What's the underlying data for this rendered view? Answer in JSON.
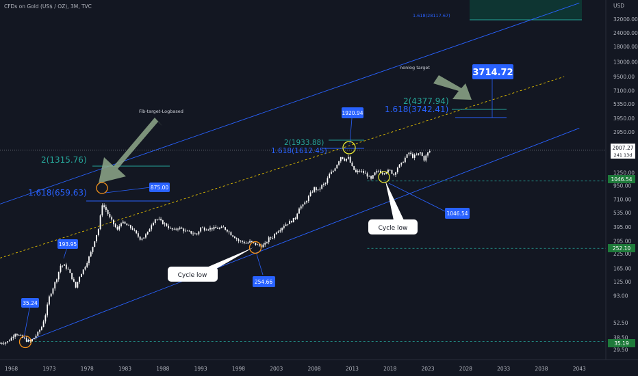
{
  "header": {
    "title": "CFDs on Gold (US$ / OZ), 3M, TVC"
  },
  "axis": {
    "currency": "USD"
  },
  "colors": {
    "background": "#131722",
    "candle": "#ffffff",
    "channel": "#2962ff",
    "midline": "#e5c100",
    "fib_green": "#26a69a",
    "fib_blue": "#2962ff",
    "label_bg": "#2962ff",
    "green_tag": "#1e7a3a",
    "arrow": "#8fa88a",
    "circle_orange": "#f7931a",
    "circle_yellow": "#e5e533"
  },
  "chart_data": {
    "type": "candlestick",
    "title": "CFDs on Gold (US$ / OZ), 3M, TVC",
    "yscale": "log",
    "ylim": [
      24,
      48000
    ],
    "xlim": [
      1966.5,
      2046.5
    ],
    "x_ticks": [
      "1968",
      "1973",
      "1978",
      "1983",
      "1988",
      "1993",
      "1998",
      "2003",
      "2008",
      "2013",
      "2018",
      "2023",
      "2028",
      "2033",
      "2038",
      "2043"
    ],
    "y_ticks": [
      "32000.00",
      "24000.00",
      "18000.00",
      "13000.00",
      "9500.00",
      "7100.00",
      "5350.00",
      "3950.00",
      "2950.00",
      "2150.00",
      "1250.00",
      "950.00",
      "710.00",
      "535.00",
      "395.00",
      "295.00",
      "225.00",
      "165.00",
      "125.00",
      "93.00",
      "52.50",
      "38.50",
      "29.50"
    ],
    "price_key_points": [
      [
        1966.5,
        34
      ],
      [
        1967.5,
        35
      ],
      [
        1968,
        38
      ],
      [
        1968.5,
        42
      ],
      [
        1969,
        40
      ],
      [
        1970,
        36
      ],
      [
        1970.5,
        35.2
      ],
      [
        1971,
        38
      ],
      [
        1971.5,
        42
      ],
      [
        1972,
        48
      ],
      [
        1972.5,
        62
      ],
      [
        1973,
        90
      ],
      [
        1973.5,
        110
      ],
      [
        1974,
        135
      ],
      [
        1974.5,
        175
      ],
      [
        1975,
        175
      ],
      [
        1975.5,
        160
      ],
      [
        1976,
        135
      ],
      [
        1976.5,
        110
      ],
      [
        1977,
        140
      ],
      [
        1977.5,
        160
      ],
      [
        1978,
        190
      ],
      [
        1978.5,
        230
      ],
      [
        1979,
        300
      ],
      [
        1979.5,
        380
      ],
      [
        1980,
        640
      ],
      [
        1980.5,
        570
      ],
      [
        1981,
        480
      ],
      [
        1981.5,
        420
      ],
      [
        1982,
        370
      ],
      [
        1982.5,
        440
      ],
      [
        1983,
        420
      ],
      [
        1983.5,
        400
      ],
      [
        1984,
        380
      ],
      [
        1984.5,
        340
      ],
      [
        1985,
        310
      ],
      [
        1985.5,
        320
      ],
      [
        1986,
        350
      ],
      [
        1986.5,
        420
      ],
      [
        1987,
        470
      ],
      [
        1987.5,
        460
      ],
      [
        1988,
        430
      ],
      [
        1988.5,
        410
      ],
      [
        1989,
        380
      ],
      [
        1989.5,
        370
      ],
      [
        1990,
        390
      ],
      [
        1990.5,
        380
      ],
      [
        1991,
        360
      ],
      [
        1991.5,
        355
      ],
      [
        1992,
        345
      ],
      [
        1992.5,
        340
      ],
      [
        1993,
        390
      ],
      [
        1993.5,
        380
      ],
      [
        1994,
        385
      ],
      [
        1994.5,
        385
      ],
      [
        1995,
        385
      ],
      [
        1995.5,
        385
      ],
      [
        1996,
        390
      ],
      [
        1996.5,
        370
      ],
      [
        1997,
        340
      ],
      [
        1997.5,
        320
      ],
      [
        1998,
        295
      ],
      [
        1998.5,
        290
      ],
      [
        1999,
        280
      ],
      [
        1999.5,
        290
      ],
      [
        2000,
        280
      ],
      [
        2000.5,
        270
      ],
      [
        2001,
        265
      ],
      [
        2001.5,
        275
      ],
      [
        2002,
        310
      ],
      [
        2002.5,
        320
      ],
      [
        2003,
        360
      ],
      [
        2003.5,
        380
      ],
      [
        2004,
        410
      ],
      [
        2004.5,
        430
      ],
      [
        2005,
        450
      ],
      [
        2005.5,
        480
      ],
      [
        2006,
        600
      ],
      [
        2006.5,
        620
      ],
      [
        2007,
        700
      ],
      [
        2007.5,
        800
      ],
      [
        2008,
        900
      ],
      [
        2008.5,
        850
      ],
      [
        2009,
        950
      ],
      [
        2009.5,
        1000
      ],
      [
        2010,
        1200
      ],
      [
        2010.5,
        1300
      ],
      [
        2011,
        1500
      ],
      [
        2011.5,
        1750
      ],
      [
        2012,
        1650
      ],
      [
        2012.5,
        1700
      ],
      [
        2013,
        1400
      ],
      [
        2013.5,
        1250
      ],
      [
        2014,
        1300
      ],
      [
        2014.5,
        1250
      ],
      [
        2015,
        1180
      ],
      [
        2015.5,
        1080
      ],
      [
        2016,
        1230
      ],
      [
        2016.5,
        1300
      ],
      [
        2017,
        1250
      ],
      [
        2017.5,
        1280
      ],
      [
        2018,
        1300
      ],
      [
        2018.5,
        1200
      ],
      [
        2019,
        1400
      ],
      [
        2019.5,
        1500
      ],
      [
        2020,
        1700
      ],
      [
        2020.5,
        1900
      ],
      [
        2021,
        1750
      ],
      [
        2021.5,
        1800
      ],
      [
        2022,
        1900
      ],
      [
        2022.5,
        1650
      ],
      [
        2023,
        1900
      ],
      [
        2023.4,
        2007.27
      ]
    ],
    "channel_upper": [
      [
        1964,
        560
      ],
      [
        2043,
        45000
      ]
    ],
    "channel_lower": [
      [
        1970,
        35.19
      ],
      [
        2043,
        3200
      ]
    ],
    "midline": [
      [
        1966,
        200
      ],
      [
        2041,
        9500
      ]
    ],
    "levels": {
      "current": "2007.27",
      "current_sub": "241 13d",
      "dashed_1046": "1046.54",
      "dashed_252": "252.10",
      "dashed_35": "35.19"
    },
    "fib_labels": {
      "f1980_2": "2(1315.76)",
      "f1980_1618": "1.618(659.63)",
      "f2011_2": "2(1933.88)",
      "f2011_1618": "1.618(1612.45)",
      "fnon_2": "2(4377.94)",
      "fnon_1618": "1.618(3742.41)",
      "top": "1.618(28117.67)"
    },
    "price_labels": {
      "p35": "35.24",
      "p193": "193.95",
      "p875": "875.00",
      "p254": "254.66",
      "p1920": "1920.94",
      "p1046": "1046.54",
      "p3714": "3714.72"
    },
    "annotations": {
      "fib_target": "Fib-target-Logbased",
      "nonlog": "nonlog target",
      "cycle_low_1": "Cycle low",
      "cycle_low_2": "Cycle low"
    }
  }
}
